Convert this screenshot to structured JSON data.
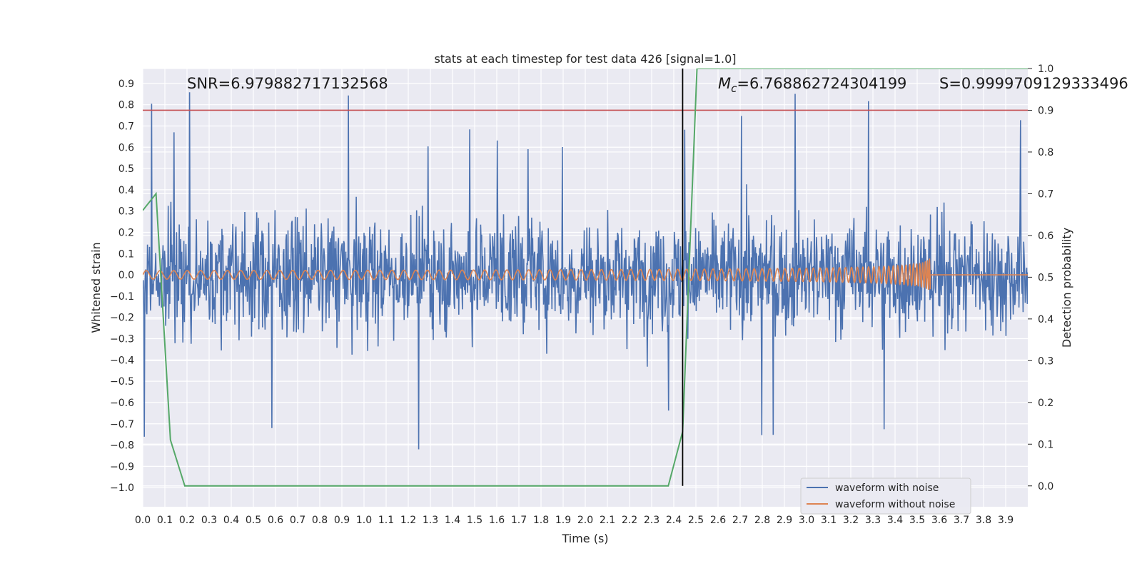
{
  "chart_data": {
    "type": "line",
    "title": "stats at each timestep for test data 426 [signal=1.0]",
    "xlabel": "Time (s)",
    "ylabel": "Whitened strain",
    "y2label": "Detection probability",
    "xlim": [
      0.0,
      4.0
    ],
    "ylim": [
      -1.09,
      0.97
    ],
    "y2lim": [
      -0.05,
      1.0
    ],
    "x_ticks": [
      "0.0",
      "0.1",
      "0.2",
      "0.3",
      "0.4",
      "0.5",
      "0.6",
      "0.7",
      "0.8",
      "0.9",
      "1.0",
      "1.1",
      "1.2",
      "1.3",
      "1.4",
      "1.5",
      "1.6",
      "1.7",
      "1.8",
      "1.9",
      "2.0",
      "2.1",
      "2.2",
      "2.3",
      "2.4",
      "2.5",
      "2.6",
      "2.7",
      "2.8",
      "2.9",
      "3.0",
      "3.1",
      "3.2",
      "3.3",
      "3.4",
      "3.5",
      "3.6",
      "3.7",
      "3.8",
      "3.9"
    ],
    "y_ticks": [
      "0.9",
      "0.8",
      "0.7",
      "0.6",
      "0.5",
      "0.4",
      "0.3",
      "0.2",
      "0.1",
      "0.0",
      "−0.1",
      "−0.2",
      "−0.3",
      "−0.4",
      "−0.5",
      "−0.6",
      "−0.7",
      "−0.8",
      "−0.9",
      "−1.0"
    ],
    "y2_ticks": [
      "1.0",
      "0.9",
      "0.8",
      "0.7",
      "0.6",
      "0.5",
      "0.4",
      "0.3",
      "0.2",
      "0.1",
      "0.0"
    ],
    "grid": true,
    "legend_position": "lower-right",
    "series": [
      {
        "name": "waveform with noise",
        "color": "#4c72b0",
        "note_type": "noise",
        "amplitude_typical": 0.3,
        "amplitude_peaks": 0.9
      },
      {
        "name": "waveform without noise",
        "color": "#dd8452",
        "note_type": "chirp",
        "merger_time": 3.56,
        "amplitude_start": 0.02,
        "amplitude_peak": 0.2
      }
    ],
    "detection_probability": {
      "color": "#55a868",
      "axis": "right",
      "x": [
        0.0,
        0.06,
        0.125,
        0.19,
        2.375,
        2.44,
        2.505,
        4.0
      ],
      "y": [
        0.66,
        0.7,
        0.11,
        0.0,
        0.0,
        0.13,
        1.0,
        1.0
      ]
    },
    "threshold_line": {
      "y2": 0.9,
      "color": "#c44e52"
    },
    "marker_line": {
      "x": 2.44,
      "color": "#000000"
    },
    "annotations": {
      "snr": "SNR=6.979882717132568",
      "mc_symbol": "M",
      "mc_subscript": "c",
      "mc_value": "=6.768862724304199",
      "s": "S=0.9999709129333496"
    }
  }
}
